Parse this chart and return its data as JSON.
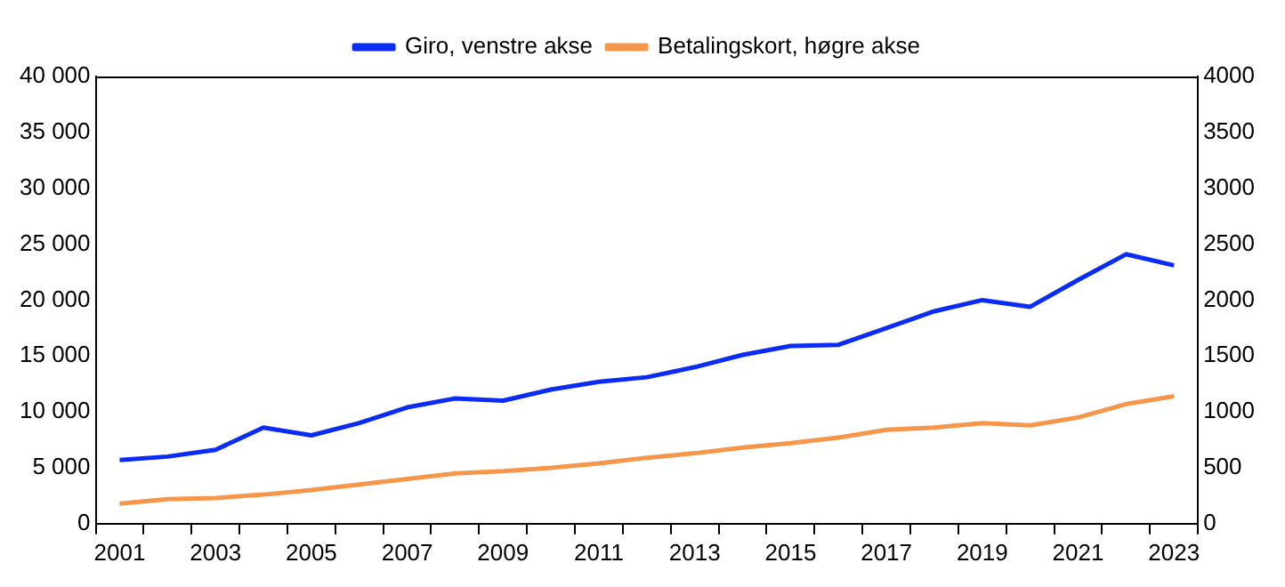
{
  "chart_data": {
    "type": "line",
    "categories": [
      "2001",
      null,
      "2003",
      null,
      "2005",
      null,
      "2007",
      null,
      "2009",
      null,
      "2011",
      null,
      "2013",
      null,
      "2015",
      null,
      "2017",
      null,
      "2019",
      null,
      "2021",
      null,
      "2023"
    ],
    "series": [
      {
        "name": "Giro, venstre akse",
        "color": "#0a2cf5",
        "values": [
          5700,
          6000,
          6600,
          8600,
          7900,
          9000,
          10400,
          11200,
          11000,
          12000,
          12700,
          13100,
          14000,
          15100,
          15900,
          16000,
          17500,
          19000,
          20000,
          19400,
          21800,
          24100,
          23100
        ]
      },
      {
        "name": "Betalingskort, høgre akse",
        "color": "#f5964a",
        "axis": "y2",
        "values": [
          180,
          220,
          230,
          260,
          300,
          350,
          400,
          450,
          470,
          500,
          540,
          590,
          630,
          680,
          720,
          770,
          840,
          860,
          900,
          880,
          950,
          1070,
          1140
        ]
      }
    ],
    "ylim": [
      0,
      40000
    ],
    "yticks": [
      0,
      {
        "value": 5000,
        "label": "5 000"
      },
      {
        "value": 10000,
        "label": "10 000"
      },
      {
        "value": 15000,
        "label": "15 000"
      },
      {
        "value": 20000,
        "label": "20 000"
      },
      {
        "value": 25000,
        "label": "25 000"
      },
      {
        "value": 30000,
        "label": "30 000"
      },
      {
        "value": 35000,
        "label": "35 000"
      },
      {
        "value": 40000,
        "label": "40 000"
      }
    ],
    "y2lim": [
      0,
      4000
    ],
    "y2ticks": [
      0,
      500,
      1000,
      1500,
      2000,
      2500,
      3000,
      3500,
      4000
    ],
    "legend": "top",
    "grid": false
  }
}
